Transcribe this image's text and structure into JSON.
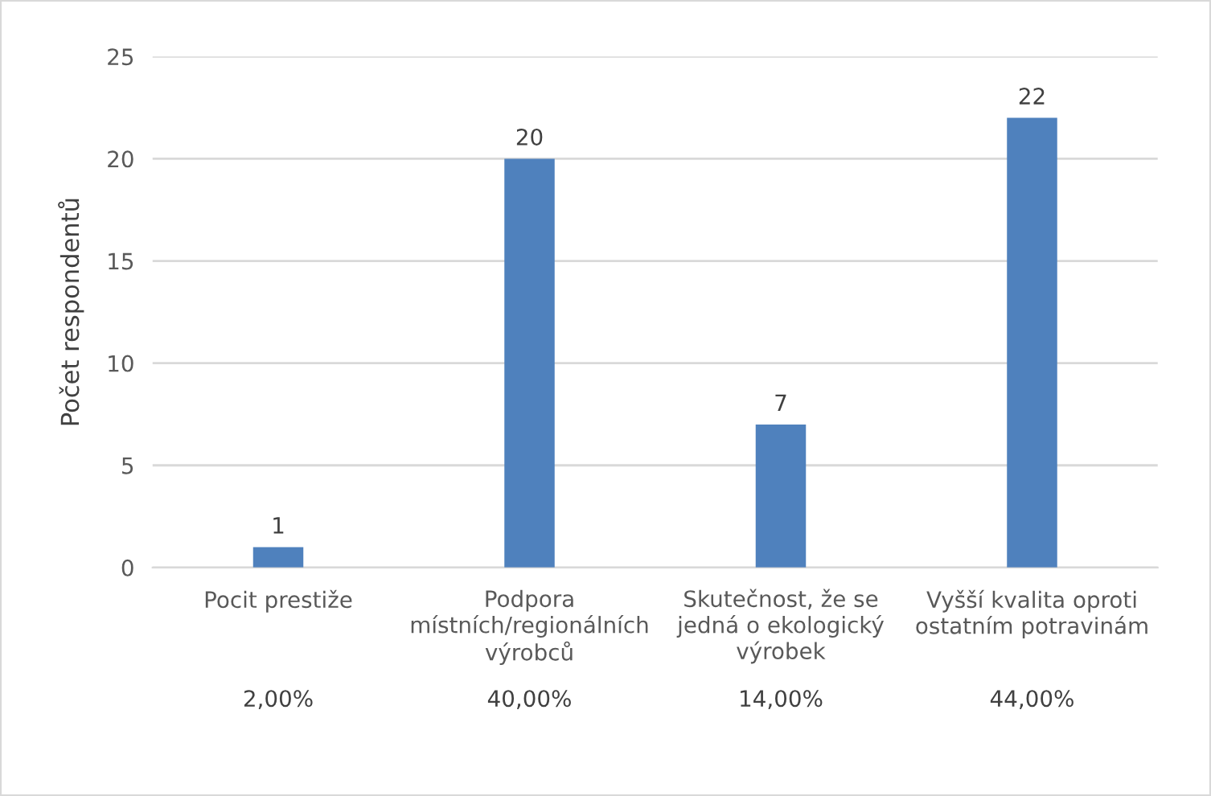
{
  "chart_data": {
    "type": "bar",
    "ylabel": "Počet respondentů",
    "categories": [
      "Pocit prestiže",
      "Podpora\nmístních/regionálních\nvýrobců",
      "Skutečnost, že se\njedná o ekologický\nvýrobek",
      "Vyšší kvalita oproti\nostatním potravinám"
    ],
    "values": [
      1,
      20,
      7,
      22
    ],
    "color": "#4f81bd",
    "ylim": [
      0,
      25
    ],
    "yticks": [
      0,
      5,
      10,
      15,
      20,
      25
    ],
    "grid": "y",
    "data_labels": true,
    "annotations": [
      "2,00%",
      "40,00%",
      "14,00%",
      "44,00%"
    ]
  }
}
